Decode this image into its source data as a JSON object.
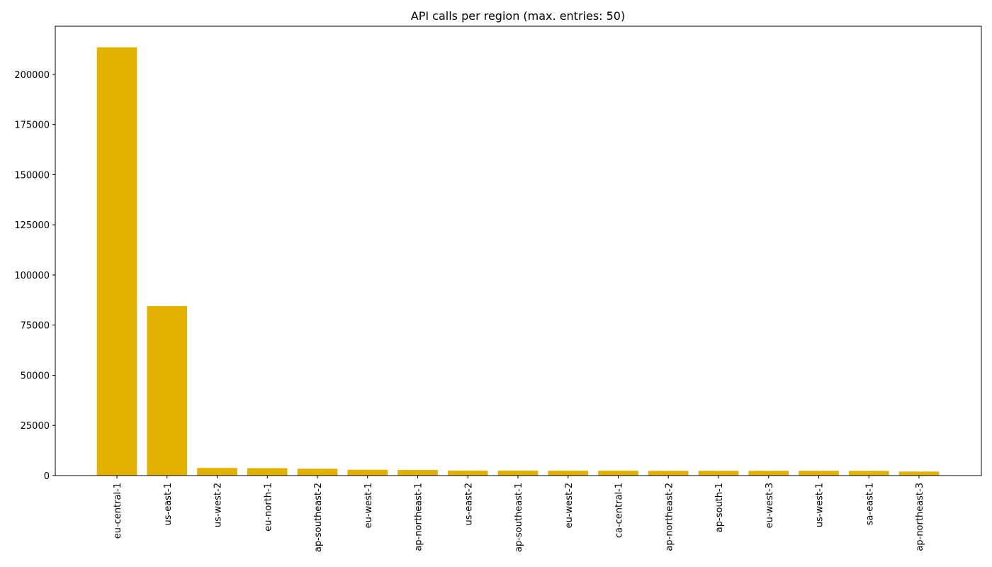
{
  "chart_data": {
    "type": "bar",
    "title": "API calls per region (max. entries: 50)",
    "xlabel": "",
    "ylabel": "",
    "categories": [
      "eu-central-1",
      "us-east-1",
      "us-west-2",
      "eu-north-1",
      "ap-southeast-2",
      "eu-west-1",
      "ap-northeast-1",
      "us-east-2",
      "ap-southeast-1",
      "eu-west-2",
      "ca-central-1",
      "ap-northeast-2",
      "ap-south-1",
      "eu-west-3",
      "us-west-1",
      "sa-east-1",
      "ap-northeast-3"
    ],
    "values": [
      213500,
      84500,
      3800,
      3700,
      3400,
      2900,
      2800,
      2500,
      2500,
      2450,
      2450,
      2400,
      2400,
      2400,
      2400,
      2350,
      2000
    ],
    "ylim": [
      0,
      224000
    ],
    "yticks": [
      0,
      25000,
      50000,
      75000,
      100000,
      125000,
      150000,
      175000,
      200000
    ],
    "bar_color": "#e3b100",
    "grid": false,
    "legend": "none"
  }
}
